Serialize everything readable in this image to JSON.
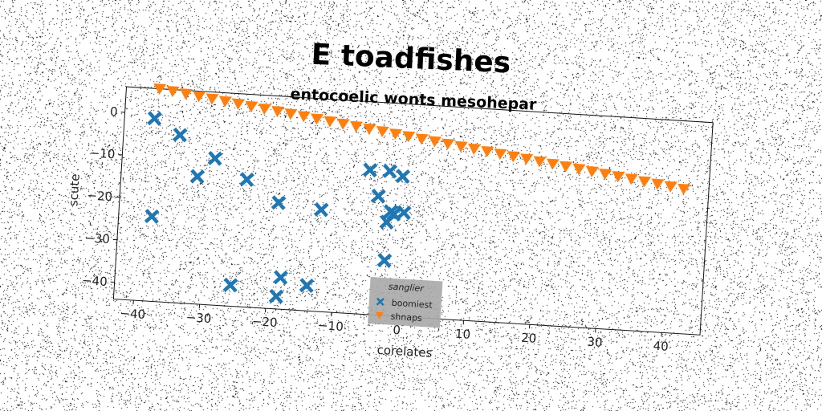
{
  "chart_data": {
    "type": "scatter",
    "title": "E toadfishes",
    "subtitle": "entocoelic wonts mesohepar",
    "xlabel": "corelates",
    "ylabel": "scute",
    "xlim": [
      -43,
      45
    ],
    "ylim": [
      -41,
      2
    ],
    "xticks": [
      -40,
      -30,
      -20,
      -10,
      0,
      10,
      20,
      30,
      40
    ],
    "yticks": [
      0,
      -10,
      -20,
      -30,
      -40
    ],
    "grid": false,
    "legend": {
      "title": "sanglier",
      "placement": "bottom-center"
    },
    "series": [
      {
        "name": "boomiest",
        "marker": "X",
        "color": "#1f77b4",
        "x": [
          -38.5,
          -34.5,
          -31.5,
          -29,
          -24,
          -19,
          -38,
          -25.5,
          -18,
          -18.5,
          -14,
          -12.5,
          -5.5,
          -4,
          -2.5,
          -0.5,
          -2.5,
          -1.5,
          0,
          -2,
          -2.5
        ],
        "y": [
          -1,
          -4.5,
          -14,
          -9.5,
          -14,
          -19,
          -24,
          -39,
          -36.5,
          -41,
          -38,
          -20,
          -10,
          -16,
          -10,
          -11,
          -22,
          -20,
          -19.5,
          -19.5,
          -31
        ]
      },
      {
        "name": "shnaps",
        "marker": "v",
        "color": "#ff7f0e",
        "x": [
          -38,
          -36,
          -34,
          -32,
          -30,
          -28,
          -26,
          -24,
          -22,
          -20,
          -18,
          -16,
          -14,
          -12,
          -10,
          -8,
          -6,
          -4,
          -2,
          0,
          2,
          4,
          6,
          8,
          10,
          12,
          14,
          16,
          18,
          20,
          22,
          24,
          26,
          28,
          30,
          32,
          34,
          36,
          38,
          40,
          42
        ],
        "y": [
          6,
          5.6,
          5.2,
          4.8,
          4.4,
          4,
          3.6,
          3.2,
          2.8,
          2.4,
          2,
          1.6,
          1.2,
          0.8,
          0.4,
          0,
          -0.4,
          -0.8,
          -1.2,
          -1.6,
          -2,
          -2.4,
          -2.8,
          -3.2,
          -3.6,
          -4,
          -4.4,
          -4.8,
          -5.2,
          -5.6,
          -6,
          -6.4,
          -6.8,
          -7.2,
          -7.6,
          -8,
          -8.4,
          -8.8,
          -9.2,
          -9.6,
          -10
        ]
      }
    ]
  },
  "colors": {
    "boomiest": "#1f77b4",
    "shnaps": "#ff7f0e",
    "legend_bg": "#a9a9a9"
  }
}
